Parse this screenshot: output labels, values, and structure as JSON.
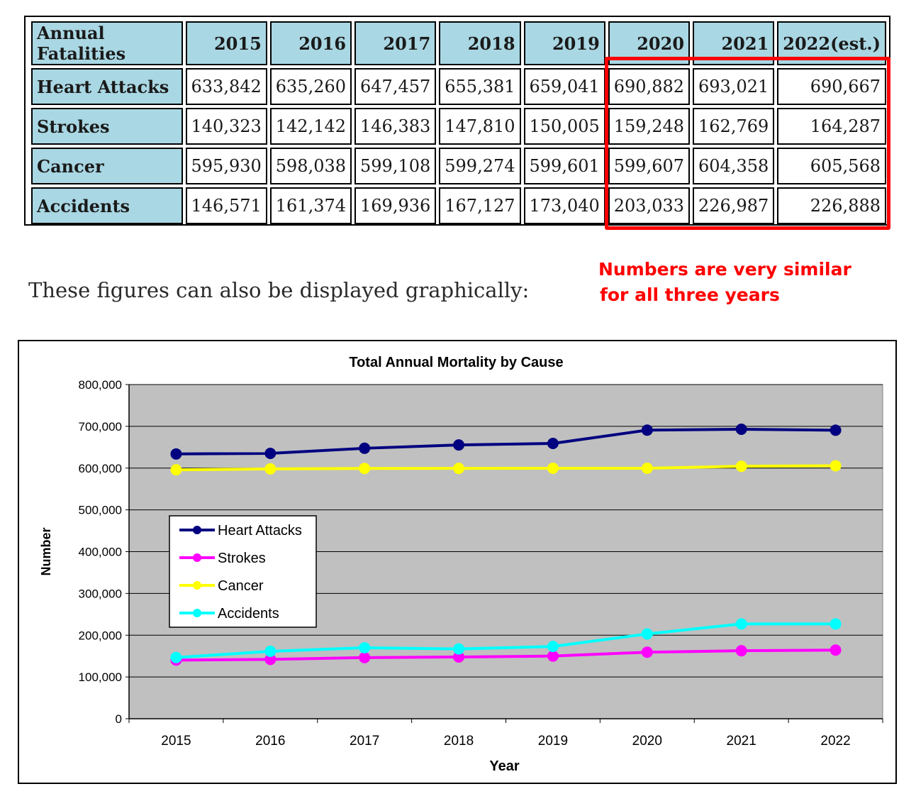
{
  "table": {
    "corner_label": "Annual Fatalities",
    "columns": [
      "2015",
      "2016",
      "2017",
      "2018",
      "2019",
      "2020",
      "2021",
      "2022(est.)"
    ],
    "rows": [
      {
        "label": "Heart Attacks",
        "values": [
          "633,842",
          "635,260",
          "647,457",
          "655,381",
          "659,041",
          "690,882",
          "693,021",
          "690,667"
        ]
      },
      {
        "label": "Strokes",
        "values": [
          "140,323",
          "142,142",
          "146,383",
          "147,810",
          "150,005",
          "159,248",
          "162,769",
          "164,287"
        ]
      },
      {
        "label": "Cancer",
        "values": [
          "595,930",
          "598,038",
          "599,108",
          "599,274",
          "599,601",
          "599,607",
          "604,358",
          "605,568"
        ]
      },
      {
        "label": "Accidents",
        "values": [
          "146,571",
          "161,374",
          "169,936",
          "167,127",
          "173,040",
          "203,033",
          "226,987",
          "226,888"
        ]
      }
    ]
  },
  "annotation": {
    "line1": "Numbers are very similar",
    "line2": "for all three years",
    "color": "#ff0000"
  },
  "caption": "These figures can also be displayed graphically:",
  "chart_data": {
    "type": "line",
    "title": "Total Annual Mortality by Cause",
    "xlabel": "Year",
    "ylabel": "Number",
    "categories": [
      "2015",
      "2016",
      "2017",
      "2018",
      "2019",
      "2020",
      "2021",
      "2022"
    ],
    "ylim": [
      0,
      800000
    ],
    "yticks": [
      0,
      100000,
      200000,
      300000,
      400000,
      500000,
      600000,
      700000,
      800000
    ],
    "ytick_labels": [
      "0",
      "100,000",
      "200,000",
      "300,000",
      "400,000",
      "500,000",
      "600,000",
      "700,000",
      "800,000"
    ],
    "grid": true,
    "plot_background": "#c0c0c0",
    "legend_position": "left",
    "series": [
      {
        "name": "Heart Attacks",
        "color": "#000080",
        "values": [
          633842,
          635260,
          647457,
          655381,
          659041,
          690882,
          693021,
          690667
        ]
      },
      {
        "name": "Strokes",
        "color": "#ff00ff",
        "values": [
          140323,
          142142,
          146383,
          147810,
          150005,
          159248,
          162769,
          164287
        ]
      },
      {
        "name": "Cancer",
        "color": "#ffff00",
        "values": [
          595930,
          598038,
          599108,
          599274,
          599601,
          599607,
          604358,
          605568
        ]
      },
      {
        "name": "Accidents",
        "color": "#00ffff",
        "values": [
          146571,
          161374,
          169936,
          167127,
          173040,
          203033,
          226987,
          226888
        ]
      }
    ]
  }
}
